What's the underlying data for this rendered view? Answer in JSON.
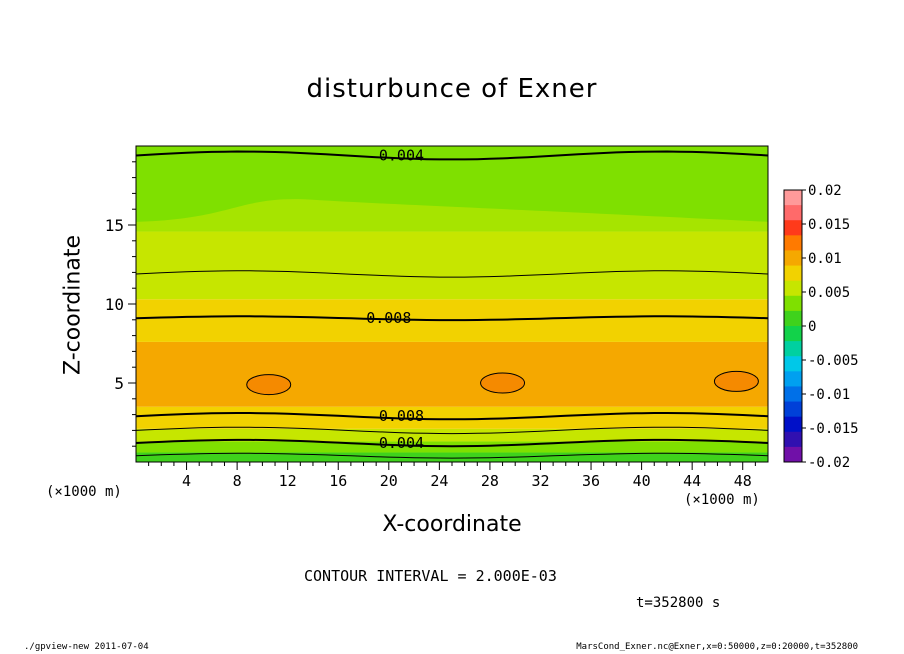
{
  "chart_data": {
    "type": "heatmap",
    "subtype": "filled-contour",
    "title": "disturbunce of Exner",
    "xlabel": "X-coordinate",
    "ylabel": "Z-coordinate",
    "x_unit": "(×1000 m)",
    "y_unit": "(×1000 m)",
    "xlim": [
      0,
      50
    ],
    "ylim": [
      0,
      20
    ],
    "x_ticks": [
      4,
      8,
      12,
      16,
      20,
      24,
      28,
      32,
      36,
      40,
      44,
      48
    ],
    "y_ticks": [
      5,
      10,
      15
    ],
    "colorbar": {
      "range": [
        -0.02,
        0.02
      ],
      "tick_labels": [
        "0.02",
        "0.015",
        "0.01",
        "0.005",
        "0",
        "-0.005",
        "-0.01",
        "-0.015",
        "-0.02"
      ],
      "tick_values": [
        0.02,
        0.015,
        0.01,
        0.005,
        0,
        -0.005,
        -0.01,
        -0.015,
        -0.02
      ],
      "colors_top_to_bottom": [
        "#ff9a9a",
        "#ff6a6a",
        "#ff3a1a",
        "#ff7a00",
        "#f5a800",
        "#f2d200",
        "#c6e600",
        "#7fe000",
        "#3fd21c",
        "#12d24a",
        "#00d0a0",
        "#00c8e8",
        "#00a0f0",
        "#0070e8",
        "#0040d8",
        "#0010c8",
        "#3010b0",
        "#7010a8"
      ]
    },
    "contour_interval": "2.000E-03",
    "contour_labels": [
      {
        "text": "0.004",
        "x": 21,
        "z": 19.4
      },
      {
        "text": "0.008",
        "x": 20,
        "z": 9.1
      },
      {
        "text": "0.008",
        "x": 21,
        "z": 2.9
      },
      {
        "text": "0.004",
        "x": 21,
        "z": 1.2
      }
    ],
    "contour_values_z_profile": [
      {
        "z": 0.3,
        "value": 0.002
      },
      {
        "z": 1.2,
        "value": 0.004
      },
      {
        "z": 2.0,
        "value": 0.006
      },
      {
        "z": 2.9,
        "value": 0.008
      },
      {
        "z": 5.0,
        "value": 0.0105
      },
      {
        "z": 9.1,
        "value": 0.008
      },
      {
        "z": 11.8,
        "value": 0.006
      },
      {
        "z": 19.4,
        "value": 0.004
      }
    ],
    "grid": false
  },
  "texts": {
    "contour_note": "CONTOUR INTERVAL = 2.000E-03",
    "time_note": "t=352800 s",
    "footer_left": "./gpview-new   2011-07-04",
    "footer_right": "MarsCond_Exner.nc@Exner,x=0:50000,z=0:20000,t=352800",
    "x_unit_label": "(×1000 m)",
    "y_unit_label": "(×1000 m)"
  }
}
